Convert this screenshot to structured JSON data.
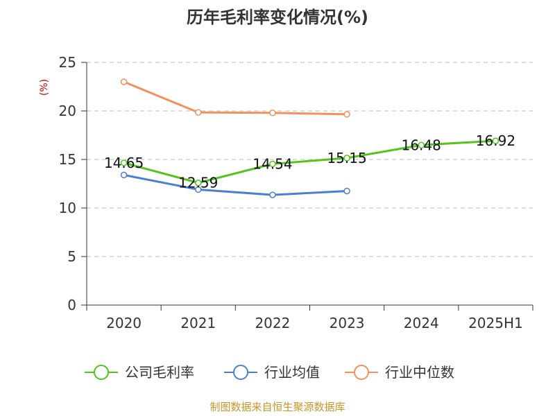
{
  "chart_data": {
    "type": "line",
    "title": "历年毛利率变化情况(%)",
    "unit_label": "(%)",
    "categories": [
      "2020",
      "2021",
      "2022",
      "2023",
      "2024",
      "2025H1"
    ],
    "ylim": [
      0,
      25
    ],
    "yticks": [
      0,
      5,
      10,
      15,
      20,
      25
    ],
    "grid": true,
    "legend_position": "bottom",
    "series": [
      {
        "name": "公司毛利率",
        "color": "#52c41a",
        "values": [
          14.65,
          12.59,
          14.54,
          15.15,
          16.48,
          16.92
        ],
        "labels": [
          "14.65",
          "12.59",
          "14.54",
          "15.15",
          "16.48",
          "16.92"
        ]
      },
      {
        "name": "行业均值",
        "color": "#4a7fd6",
        "values": [
          13.4,
          11.9,
          11.35,
          11.75,
          null,
          null
        ]
      },
      {
        "name": "行业中位数",
        "color": "#f4915a",
        "values": [
          23.0,
          19.85,
          19.8,
          19.65,
          null,
          null
        ]
      }
    ]
  },
  "source": "制图数据来自恒生聚源数据库"
}
